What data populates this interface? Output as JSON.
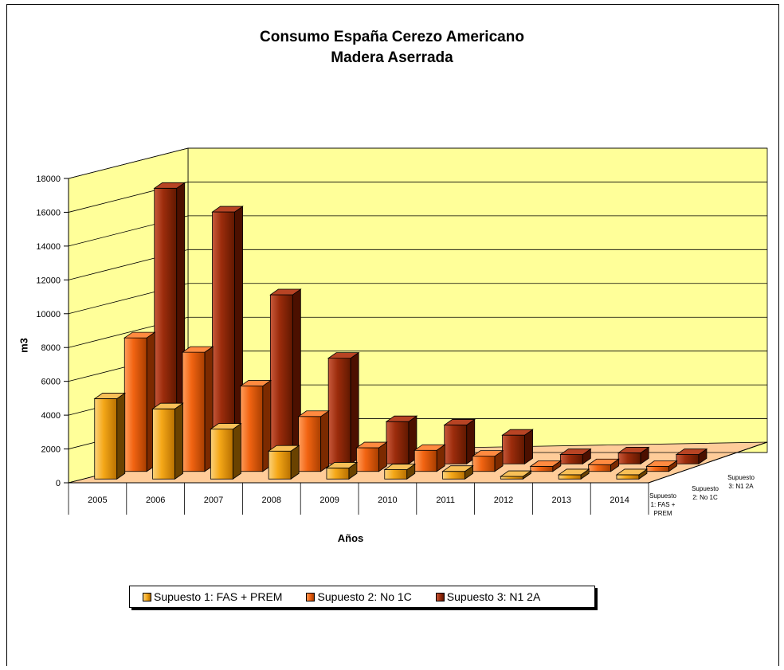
{
  "chart_data": {
    "type": "bar",
    "title": "Consumo España Cerezo Americano",
    "subtitle": "Madera Aserrada",
    "xlabel": "Años",
    "ylabel": "m3",
    "ylim": [
      0,
      18000
    ],
    "yticks": [
      "0",
      "2000",
      "4000",
      "6000",
      "8000",
      "10000",
      "12000",
      "14000",
      "16000",
      "18000"
    ],
    "categories": [
      "2005",
      "2006",
      "2007",
      "2008",
      "2009",
      "2010",
      "2011",
      "2012",
      "2013",
      "2014"
    ],
    "depth_labels": [
      "Supuesto 1: FAS + PREM",
      "Supuesto 2: No 1C",
      "Supuesto 3: N1 2A"
    ],
    "grid": true,
    "legend_position": "bottom",
    "series": [
      {
        "name": "Supuesto 1: FAS + PREM",
        "color": "#f5a818",
        "values": [
          4750,
          4150,
          2950,
          1650,
          650,
          550,
          450,
          150,
          250,
          250
        ]
      },
      {
        "name": "Supuesto 2: No 1C",
        "color": "#f06010",
        "values": [
          7900,
          7050,
          5050,
          3250,
          1400,
          1250,
          900,
          300,
          400,
          300
        ]
      },
      {
        "name": "Supuesto 3: N1 2A",
        "color": "#9c2c0c",
        "values": [
          16300,
          14900,
          10000,
          6250,
          2500,
          2300,
          1700,
          550,
          650,
          550
        ]
      }
    ]
  }
}
